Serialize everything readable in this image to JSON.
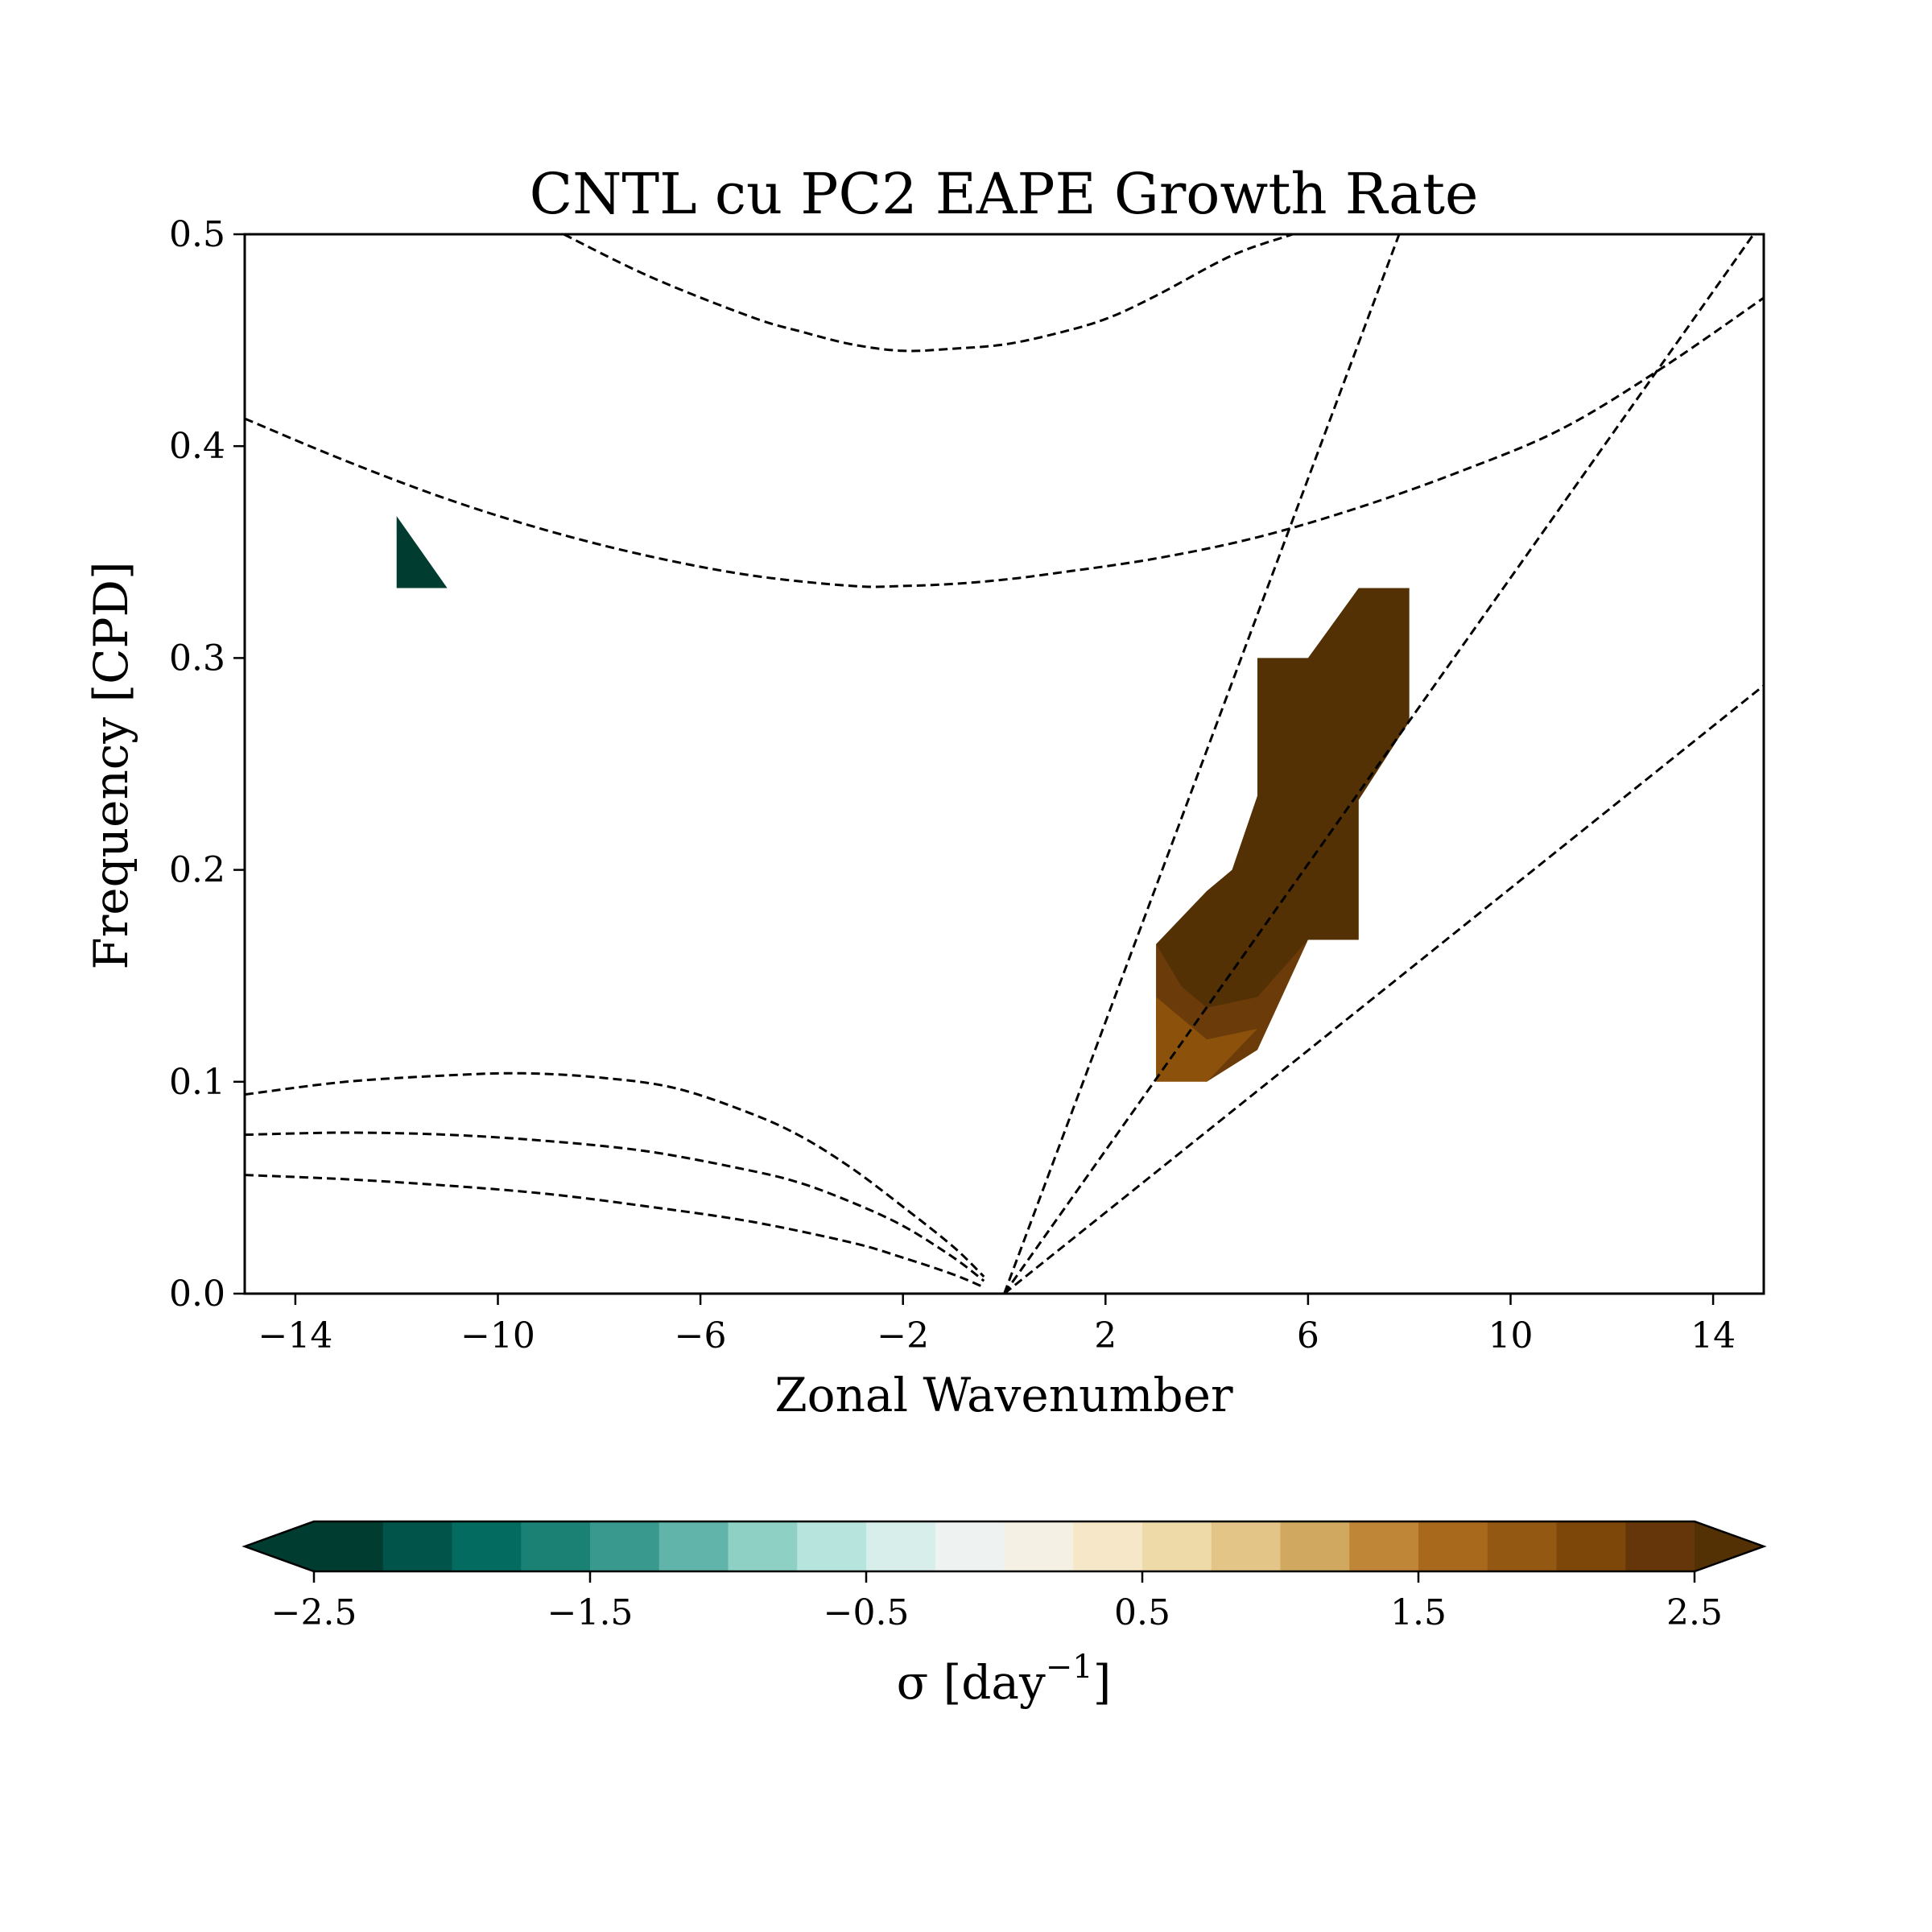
{
  "chart_data": {
    "type": "heatmap",
    "title": "CNTL cu PC2 EAPE Growth Rate",
    "xlabel": "Zonal Wavenumber",
    "ylabel": "Frequency [CPD]",
    "xlim": [
      -15,
      15
    ],
    "ylim": [
      0,
      0.5
    ],
    "xticks": [
      -14,
      -10,
      -6,
      -2,
      2,
      6,
      10,
      14
    ],
    "xtick_labels": [
      "−14",
      "−10",
      "−6",
      "−2",
      "2",
      "6",
      "10",
      "14"
    ],
    "yticks": [
      0.0,
      0.1,
      0.2,
      0.3,
      0.4,
      0.5
    ],
    "ytick_labels": [
      "0.0",
      "0.1",
      "0.2",
      "0.3",
      "0.4",
      "0.5"
    ],
    "grid": false,
    "dispersion_curves": [
      {
        "x": [
          -15,
          -13,
          -11,
          -9,
          -7,
          -5,
          -3,
          -2,
          -1,
          0,
          1,
          3,
          5,
          7,
          9,
          11,
          13,
          15
        ],
        "y": [
          0.413,
          0.393,
          0.375,
          0.36,
          0.348,
          0.339,
          0.334,
          0.334,
          0.335,
          0.337,
          0.34,
          0.347,
          0.357,
          0.371,
          0.388,
          0.408,
          0.437,
          0.47
        ]
      },
      {
        "x": [
          -8.7,
          -7,
          -5,
          -4,
          -3,
          -2,
          -1,
          0,
          1,
          2,
          3,
          4.5,
          5.7
        ],
        "y": [
          0.5,
          0.48,
          0.461,
          0.454,
          0.448,
          0.445,
          0.446,
          0.448,
          0.453,
          0.46,
          0.471,
          0.49,
          0.5
        ]
      },
      {
        "x": [
          -15,
          -13,
          -11,
          -9.5,
          -8,
          -6.5,
          -5,
          -4,
          -3,
          -2,
          -1,
          -0.4
        ],
        "y": [
          0.094,
          0.1,
          0.103,
          0.104,
          0.102,
          0.097,
          0.085,
          0.074,
          0.059,
          0.041,
          0.022,
          0.008
        ]
      },
      {
        "x": [
          -15,
          -13,
          -11,
          -9,
          -7,
          -5,
          -4,
          -3,
          -2,
          -1,
          -0.4
        ],
        "y": [
          0.075,
          0.076,
          0.075,
          0.072,
          0.067,
          0.058,
          0.052,
          0.043,
          0.032,
          0.017,
          0.006
        ]
      },
      {
        "x": [
          -15,
          -13,
          -11,
          -9,
          -7,
          -5,
          -3,
          -2,
          -1,
          -0.4
        ],
        "y": [
          0.056,
          0.054,
          0.051,
          0.047,
          0.041,
          0.034,
          0.024,
          0.017,
          0.009,
          0.003
        ]
      },
      {
        "x": [
          0,
          7.8
        ],
        "y": [
          0,
          0.5
        ]
      },
      {
        "x": [
          0,
          14.8
        ],
        "y": [
          0,
          0.5
        ]
      },
      {
        "x": [
          0,
          15
        ],
        "y": [
          0,
          0.287
        ]
      }
    ],
    "regions": [
      {
        "level": 2.5,
        "color": "#543005",
        "points": [
          [
            3,
            0.165
          ],
          [
            4,
            0.19
          ],
          [
            4.5,
            0.2
          ],
          [
            5,
            0.235
          ],
          [
            5,
            0.3
          ],
          [
            6,
            0.3
          ],
          [
            7,
            0.333
          ],
          [
            8,
            0.333
          ],
          [
            8,
            0.27
          ],
          [
            7,
            0.233
          ],
          [
            7,
            0.167
          ],
          [
            6,
            0.167
          ],
          [
            5,
            0.135
          ],
          [
            4,
            0.12
          ],
          [
            3,
            0.125
          ]
        ]
      },
      {
        "level": 2.25,
        "color": "#6b3b0a",
        "points": [
          [
            3,
            0.165
          ],
          [
            3.5,
            0.145
          ],
          [
            4,
            0.135
          ],
          [
            5,
            0.14
          ],
          [
            6,
            0.167
          ],
          [
            6,
            0.167
          ],
          [
            5,
            0.115
          ],
          [
            4,
            0.1
          ],
          [
            3,
            0.103
          ]
        ]
      },
      {
        "level": 2.0,
        "color": "#8c510a",
        "points": [
          [
            3,
            0.14
          ],
          [
            4,
            0.12
          ],
          [
            5,
            0.125
          ],
          [
            4,
            0.1
          ],
          [
            3,
            0.1
          ]
        ]
      },
      {
        "level": -2.5,
        "color": "#003c30",
        "points": [
          [
            -12,
            0.367
          ],
          [
            -11,
            0.333
          ],
          [
            -12,
            0.333
          ]
        ]
      }
    ],
    "colorbar": {
      "label": "σ [day",
      "label_sup": "−1",
      "label_close": "]",
      "min": -2.5,
      "max": 2.5,
      "extend": "both",
      "extend_min_color": "#003c30",
      "extend_max_color": "#543005",
      "colors": [
        "#003c30",
        "#01544a",
        "#036b5f",
        "#1b8175",
        "#3a998e",
        "#60b4a9",
        "#8fd0c4",
        "#b8e4de",
        "#d7eeeb",
        "#eef2f0",
        "#f4f0e3",
        "#f5e7c7",
        "#eedaa9",
        "#e2c587",
        "#d1a860",
        "#c08637",
        "#a9691d",
        "#935913",
        "#7e470a",
        "#653609"
      ],
      "ticks": [
        -2.5,
        -1.5,
        -0.5,
        0.5,
        1.5,
        2.5
      ],
      "tick_labels": [
        "−2.5",
        "−1.5",
        "−0.5",
        "0.5",
        "1.5",
        "2.5"
      ]
    }
  }
}
